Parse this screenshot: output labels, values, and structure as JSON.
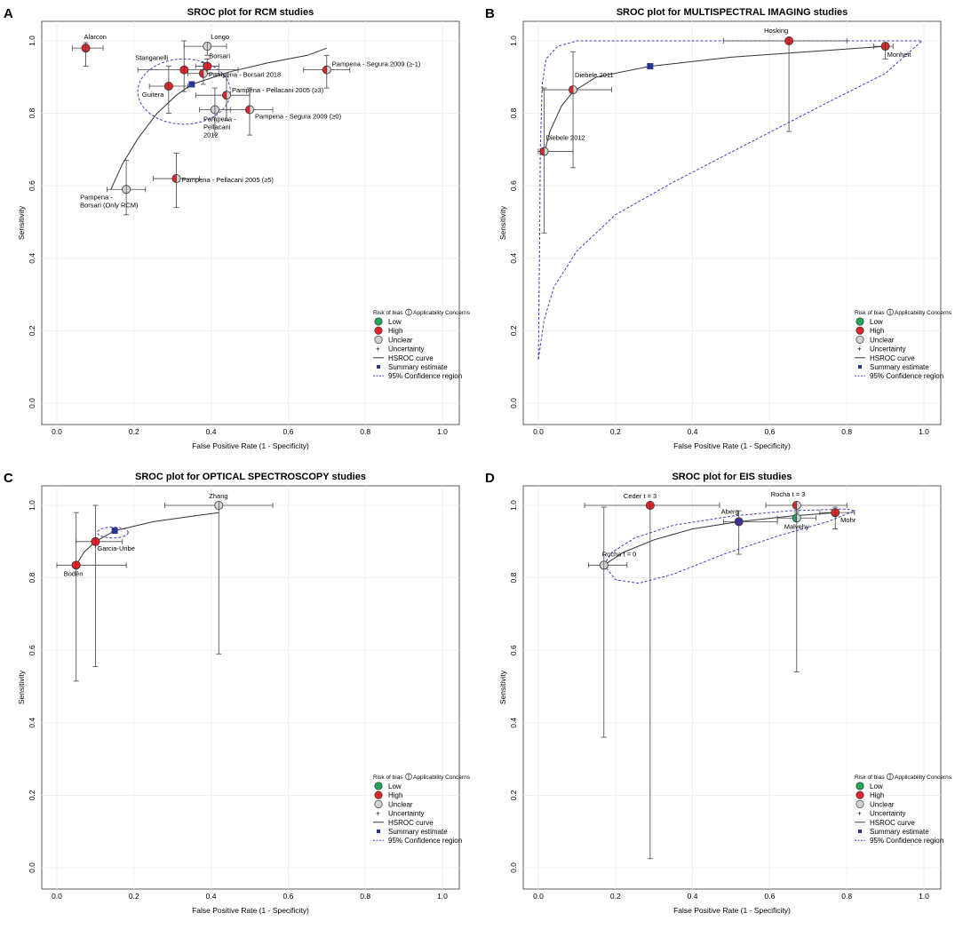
{
  "legend": {
    "header_left": "Risk of bias",
    "header_right": "Applicability Concerns",
    "low": "Low",
    "high": "High",
    "unclear": "Unclear",
    "uncertainty": "Uncertainty",
    "hsroc": "HSROC curve",
    "summary": "Summary estimate",
    "conf": "95% Confidence region"
  },
  "colors": {
    "low": "#22a45a",
    "high": "#e0262a",
    "unclear": "#d3d3d3",
    "summary": "#2b3494",
    "conf": "#4040c0",
    "curve": "#333333",
    "grid": "#ebebeb"
  },
  "chart_data": [
    {
      "type": "scatter",
      "letter": "A",
      "title": "SROC plot for RCM studies",
      "xlabel": "False Positive Rate (1 - Specificity)",
      "ylabel": "Sensitivity",
      "xlim": [
        0,
        1
      ],
      "ylim": [
        0,
        1
      ],
      "xticks": [
        "0.0",
        "0.2",
        "0.4",
        "0.6",
        "0.8",
        "1.0"
      ],
      "yticks": [
        "0.0",
        "0.2",
        "0.4",
        "0.6",
        "0.8",
        "1.0"
      ],
      "grid": true,
      "legend_position": "bottom-right",
      "summary": {
        "x": 0.35,
        "y": 0.88
      },
      "curve": [
        [
          0.14,
          0.59
        ],
        [
          0.17,
          0.66
        ],
        [
          0.21,
          0.73
        ],
        [
          0.26,
          0.8
        ],
        [
          0.31,
          0.85
        ],
        [
          0.35,
          0.88
        ],
        [
          0.45,
          0.915
        ],
        [
          0.55,
          0.94
        ],
        [
          0.65,
          0.96
        ],
        [
          0.7,
          0.98
        ]
      ],
      "ellipse": {
        "cx": 0.33,
        "cy": 0.86,
        "rx": 0.12,
        "ry": 0.09
      },
      "studies": [
        {
          "label": "Alarcon",
          "x": 0.075,
          "y": 0.98,
          "xlo": 0.04,
          "xhi": 0.12,
          "ylo": 0.93,
          "yhi": 0.995,
          "bias": "high",
          "app": "high"
        },
        {
          "label": "Longo",
          "x": 0.39,
          "y": 0.985,
          "xlo": 0.33,
          "xhi": 0.44,
          "ylo": 0.96,
          "yhi": 0.995,
          "bias": "unclear",
          "app": "unclear"
        },
        {
          "label": "Borsari",
          "x": 0.39,
          "y": 0.93,
          "xlo": 0.36,
          "xhi": 0.42,
          "ylo": 0.91,
          "yhi": 0.95,
          "bias": "high",
          "app": "high"
        },
        {
          "label": "Stanganelli",
          "x": 0.33,
          "y": 0.92,
          "xlo": 0.21,
          "xhi": 0.47,
          "ylo": 0.86,
          "yhi": 1.0,
          "bias": "high",
          "app": "high"
        },
        {
          "label": "Pampena - Borsari 2018",
          "x": 0.38,
          "y": 0.91,
          "xlo": 0.34,
          "xhi": 0.42,
          "ylo": 0.88,
          "yhi": 0.94,
          "bias": "high",
          "app": "unclear"
        },
        {
          "label": "Pampena - Segura 2009 (≥-1)",
          "x": 0.7,
          "y": 0.92,
          "xlo": 0.64,
          "xhi": 0.76,
          "ylo": 0.87,
          "yhi": 0.96,
          "bias": "high",
          "app": "unclear"
        },
        {
          "label": "Guitera",
          "x": 0.29,
          "y": 0.875,
          "xlo": 0.24,
          "xhi": 0.34,
          "ylo": 0.8,
          "yhi": 0.93,
          "bias": "high",
          "app": "high"
        },
        {
          "label": "Pampena - Pellacani 2005 (≥3)",
          "x": 0.44,
          "y": 0.85,
          "xlo": 0.36,
          "xhi": 0.5,
          "ylo": 0.78,
          "yhi": 0.9,
          "bias": "high",
          "app": "unclear"
        },
        {
          "label": "Pampena - Pellacani 2012",
          "x": 0.41,
          "y": 0.81,
          "xlo": 0.37,
          "xhi": 0.45,
          "ylo": 0.74,
          "yhi": 0.87,
          "bias": "unclear",
          "app": "unclear"
        },
        {
          "label": "Pampena - Segura 2009 (≥0)",
          "x": 0.5,
          "y": 0.81,
          "xlo": 0.44,
          "xhi": 0.56,
          "ylo": 0.74,
          "yhi": 0.87,
          "bias": "high",
          "app": "unclear"
        },
        {
          "label": "Pampena - Pellacani 2005 (≥5)",
          "x": 0.31,
          "y": 0.62,
          "xlo": 0.25,
          "xhi": 0.37,
          "ylo": 0.54,
          "yhi": 0.69,
          "bias": "high",
          "app": "unclear"
        },
        {
          "label": "Pampena - Borsari (Only RCM)",
          "x": 0.18,
          "y": 0.59,
          "xlo": 0.13,
          "xhi": 0.23,
          "ylo": 0.52,
          "yhi": 0.67,
          "bias": "unclear",
          "app": "unclear"
        }
      ]
    },
    {
      "type": "scatter",
      "letter": "B",
      "title": "SROC plot for MULTISPECTRAL IMAGING studies",
      "xlabel": "False Positive Rate (1 - Specificity)",
      "ylabel": "Sensitivity",
      "xlim": [
        0,
        1
      ],
      "ylim": [
        0,
        1
      ],
      "xticks": [
        "0.0",
        "0.2",
        "0.4",
        "0.6",
        "0.8",
        "1.0"
      ],
      "yticks": [
        "0.0",
        "0.2",
        "0.4",
        "0.6",
        "0.8",
        "1.0"
      ],
      "grid": true,
      "legend_position": "bottom-right",
      "summary": {
        "x": 0.29,
        "y": 0.93
      },
      "curve": [
        [
          0.015,
          0.69
        ],
        [
          0.03,
          0.75
        ],
        [
          0.06,
          0.82
        ],
        [
          0.09,
          0.86
        ],
        [
          0.15,
          0.9
        ],
        [
          0.29,
          0.93
        ],
        [
          0.5,
          0.955
        ],
        [
          0.7,
          0.97
        ],
        [
          0.9,
          0.985
        ]
      ],
      "conf_region": [
        [
          0.0,
          0.12
        ],
        [
          0.003,
          0.4
        ],
        [
          0.005,
          0.7
        ],
        [
          0.01,
          0.88
        ],
        [
          0.02,
          0.95
        ],
        [
          0.05,
          0.985
        ],
        [
          0.1,
          1.0
        ],
        [
          0.3,
          1.0
        ],
        [
          0.6,
          1.0
        ],
        [
          0.85,
          1.0
        ],
        [
          0.995,
          1.0
        ],
        [
          0.9,
          0.91
        ],
        [
          0.75,
          0.83
        ],
        [
          0.55,
          0.72
        ],
        [
          0.35,
          0.61
        ],
        [
          0.2,
          0.52
        ],
        [
          0.1,
          0.42
        ],
        [
          0.04,
          0.32
        ],
        [
          0.015,
          0.23
        ],
        [
          0.0,
          0.12
        ]
      ],
      "studies": [
        {
          "label": "Hosking",
          "x": 0.65,
          "y": 1.0,
          "xlo": 0.48,
          "xhi": 0.8,
          "ylo": 0.75,
          "yhi": 1.0,
          "bias": "high",
          "app": "high"
        },
        {
          "label": "Monheit",
          "x": 0.9,
          "y": 0.985,
          "xlo": 0.87,
          "xhi": 0.92,
          "ylo": 0.95,
          "yhi": 0.995,
          "bias": "high",
          "app": "high"
        },
        {
          "label": "Diebele 2011",
          "x": 0.09,
          "y": 0.865,
          "xlo": 0.01,
          "xhi": 0.19,
          "ylo": 0.65,
          "yhi": 0.97,
          "bias": "high",
          "app": "unclear"
        },
        {
          "label": "Diebele 2012",
          "x": 0.015,
          "y": 0.695,
          "xlo": 0.0,
          "xhi": 0.09,
          "ylo": 0.47,
          "yhi": 0.87,
          "bias": "high",
          "app": "unclear"
        }
      ]
    },
    {
      "type": "scatter",
      "letter": "C",
      "title": "SROC plot for OPTICAL SPECTROSCOPY studies",
      "xlabel": "False Positive Rate (1 - Specificity)",
      "ylabel": "Sensitivity",
      "xlim": [
        0,
        1
      ],
      "ylim": [
        0,
        1
      ],
      "xticks": [
        "0.0",
        "0.2",
        "0.4",
        "0.6",
        "0.8",
        "1.0"
      ],
      "yticks": [
        "0.0",
        "0.2",
        "0.4",
        "0.6",
        "0.8",
        "1.0"
      ],
      "grid": true,
      "legend_position": "bottom-right",
      "summary": {
        "x": 0.15,
        "y": 0.93
      },
      "curve": [
        [
          0.05,
          0.835
        ],
        [
          0.07,
          0.87
        ],
        [
          0.1,
          0.9
        ],
        [
          0.15,
          0.93
        ],
        [
          0.25,
          0.955
        ],
        [
          0.35,
          0.97
        ],
        [
          0.42,
          0.98
        ]
      ],
      "ellipse": {
        "cx": 0.145,
        "cy": 0.925,
        "rx": 0.04,
        "ry": 0.015
      },
      "studies": [
        {
          "label": "Zhang",
          "x": 0.42,
          "y": 1.0,
          "xlo": 0.28,
          "xhi": 0.56,
          "ylo": 0.59,
          "yhi": 1.0,
          "bias": "unclear",
          "app": "unclear"
        },
        {
          "label": "Garcia-Uribe",
          "x": 0.1,
          "y": 0.9,
          "xlo": 0.05,
          "xhi": 0.17,
          "ylo": 0.555,
          "yhi": 1.0,
          "bias": "high",
          "app": "high"
        },
        {
          "label": "Bodén",
          "x": 0.05,
          "y": 0.835,
          "xlo": 0.0,
          "xhi": 0.18,
          "ylo": 0.515,
          "yhi": 0.98,
          "bias": "high",
          "app": "high"
        }
      ]
    },
    {
      "type": "scatter",
      "letter": "D",
      "title": "SROC plot for EIS studies",
      "xlabel": "False Positive Rate (1 - Specificity)",
      "ylabel": "Sensitivity",
      "xlim": [
        0,
        1
      ],
      "ylim": [
        0,
        1
      ],
      "xticks": [
        "0.0",
        "0.2",
        "0.4",
        "0.6",
        "0.8",
        "1.0"
      ],
      "yticks": [
        "0.0",
        "0.2",
        "0.4",
        "0.6",
        "0.8",
        "1.0"
      ],
      "grid": true,
      "legend_position": "bottom-right",
      "summary": {
        "x": 0.52,
        "y": 0.955
      },
      "curve": [
        [
          0.17,
          0.835
        ],
        [
          0.22,
          0.87
        ],
        [
          0.3,
          0.905
        ],
        [
          0.4,
          0.935
        ],
        [
          0.52,
          0.955
        ],
        [
          0.65,
          0.97
        ],
        [
          0.77,
          0.98
        ]
      ],
      "conf_region": [
        [
          0.17,
          0.835
        ],
        [
          0.19,
          0.87
        ],
        [
          0.25,
          0.91
        ],
        [
          0.35,
          0.945
        ],
        [
          0.5,
          0.97
        ],
        [
          0.65,
          0.985
        ],
        [
          0.8,
          0.99
        ],
        [
          0.82,
          0.985
        ],
        [
          0.75,
          0.955
        ],
        [
          0.62,
          0.915
        ],
        [
          0.48,
          0.865
        ],
        [
          0.35,
          0.81
        ],
        [
          0.26,
          0.785
        ],
        [
          0.2,
          0.795
        ],
        [
          0.17,
          0.835
        ]
      ],
      "studies": [
        {
          "label": "Ceder t = 3",
          "x": 0.29,
          "y": 1.0,
          "xlo": 0.12,
          "xhi": 0.47,
          "ylo": 0.025,
          "yhi": 1.0,
          "bias": "high",
          "app": "high"
        },
        {
          "label": "Rocha t = 3",
          "x": 0.67,
          "y": 1.0,
          "xlo": 0.59,
          "xhi": 0.8,
          "ylo": 0.98,
          "yhi": 1.0,
          "bias": "high",
          "app": "unclear"
        },
        {
          "label": "Aberg",
          "x": 0.52,
          "y": 0.955,
          "xlo": 0.48,
          "xhi": 0.62,
          "ylo": 0.865,
          "yhi": 0.985,
          "bias": "high",
          "app": "high"
        },
        {
          "label": "Malvehy",
          "x": 0.67,
          "y": 0.965,
          "xlo": 0.62,
          "xhi": 0.72,
          "ylo": 0.54,
          "yhi": 0.985,
          "bias": "low",
          "app": "unclear"
        },
        {
          "label": "Mohr",
          "x": 0.77,
          "y": 0.98,
          "xlo": 0.73,
          "xhi": 0.82,
          "ylo": 0.935,
          "yhi": 0.995,
          "bias": "high",
          "app": "high"
        },
        {
          "label": "Rocha t = 0",
          "x": 0.17,
          "y": 0.835,
          "xlo": 0.13,
          "xhi": 0.23,
          "ylo": 0.36,
          "yhi": 0.995,
          "bias": "unclear",
          "app": "unclear"
        }
      ]
    }
  ]
}
